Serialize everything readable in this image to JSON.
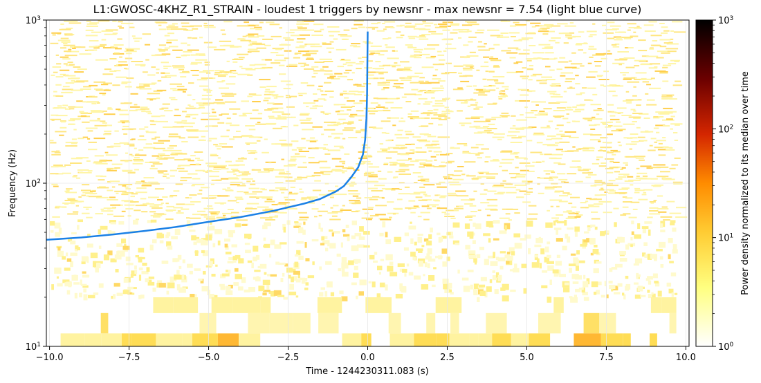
{
  "chart_data": {
    "type": "heatmap",
    "title": "L1:GWOSC-4KHZ_R1_STRAIN - loudest 1 triggers by newsnr - max newsnr = 7.54 (light blue curve)",
    "xlabel": "Time - 1244230311.083 (s)",
    "ylabel": "Frequency (Hz)",
    "xlim": [
      -10.1,
      10.1
    ],
    "ylim": [
      10,
      1000
    ],
    "yscale": "log",
    "x_ticks": [
      -10.0,
      -7.5,
      -5.0,
      -2.5,
      0.0,
      2.5,
      5.0,
      7.5,
      10.0
    ],
    "x_tick_labels": [
      "−10.0",
      "−7.5",
      "−5.0",
      "−2.5",
      "0.0",
      "2.5",
      "5.0",
      "7.5",
      "10.0"
    ],
    "y_ticks": [
      10,
      100,
      1000
    ],
    "y_tick_labels": [
      "10",
      "10",
      "10"
    ],
    "y_tick_exponents": [
      "1",
      "2",
      "3"
    ],
    "grid": true,
    "spectrogram_extent_x": [
      -10.0,
      9.7
    ],
    "colorbar": {
      "label": "Power density normalized to its median over time",
      "scale": "log",
      "range": [
        1,
        1000
      ],
      "ticks": [
        1,
        10,
        100,
        1000
      ],
      "tick_labels": [
        "10",
        "10",
        "10",
        "10"
      ],
      "tick_exponents": [
        "0",
        "1",
        "2",
        "3"
      ],
      "colormap": "afmhot_r"
    },
    "series": [
      {
        "type": "line",
        "color": "#1a80e6",
        "x": [
          -10.1,
          -9.0,
          -8.0,
          -7.0,
          -6.0,
          -5.0,
          -4.0,
          -3.0,
          -2.0,
          -1.5,
          -1.0,
          -0.75,
          -0.5,
          -0.3,
          -0.15,
          -0.08,
          -0.04,
          -0.02,
          0.0
        ],
        "y": [
          45,
          46.5,
          48.5,
          51,
          54,
          58,
          62,
          67.5,
          75,
          80,
          89,
          96,
          110,
          125,
          150,
          185,
          250,
          350,
          850
        ]
      }
    ],
    "colors": {
      "curve": "#1a80e6",
      "grid": "#e6e6e6"
    }
  }
}
